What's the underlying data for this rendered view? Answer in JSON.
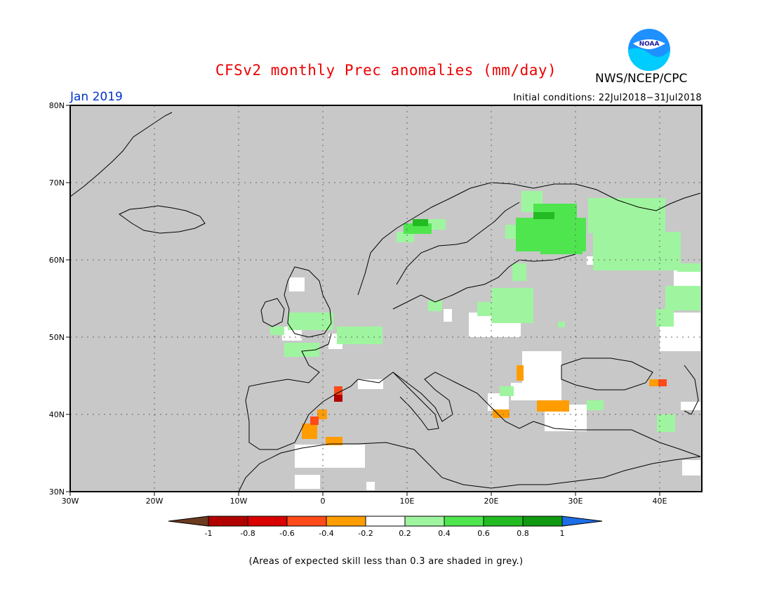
{
  "header": {
    "title": "CFSv2 monthly Prec anomalies (mm/day)",
    "agency": "NWS/NCEP/CPC",
    "logo_text": "NOAA",
    "month": "Jan 2019",
    "initial_conditions": "Initial conditions: 22Jul2018−31Jul2018"
  },
  "map": {
    "lat_labels": [
      "80N",
      "70N",
      "60N",
      "50N",
      "40N",
      "30N"
    ],
    "lon_labels": [
      "30W",
      "20W",
      "10W",
      "0",
      "10E",
      "20E",
      "30E",
      "40E"
    ],
    "background_color": "#c8c8c8"
  },
  "legend": {
    "tick_labels": [
      "-1",
      "-0.8",
      "-0.6",
      "-0.4",
      "-0.2",
      "0.2",
      "0.4",
      "0.6",
      "0.8",
      "1"
    ],
    "colors": [
      "#6b3a1f",
      "#b00000",
      "#d80000",
      "#ff4a1a",
      "#ff9d00",
      "#ffffff",
      "#9ff59f",
      "#4fe54f",
      "#22bb22",
      "#119911",
      "#1e6ee6"
    ]
  },
  "footnote": "(Areas of expected skill less than 0.3 are shaded in grey.)"
}
